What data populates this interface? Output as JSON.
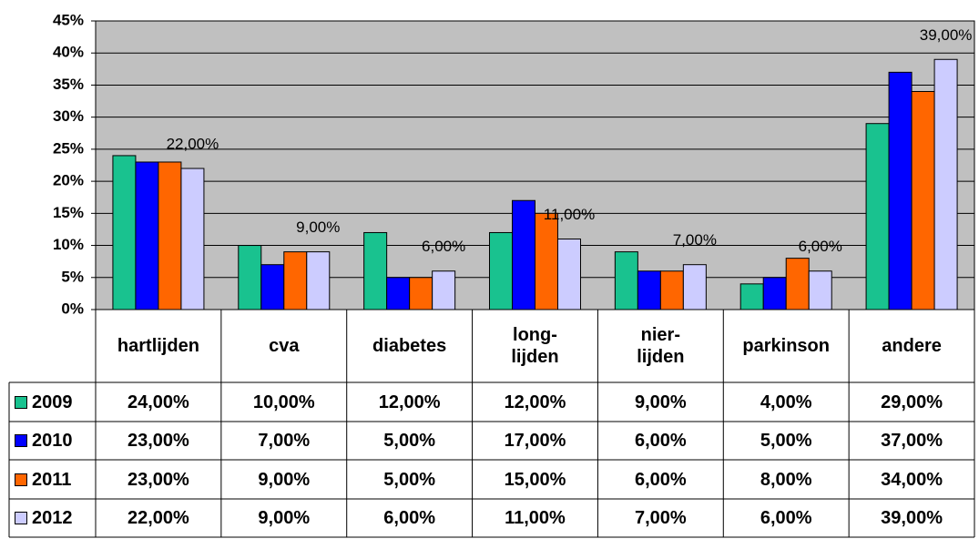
{
  "chart_data": {
    "type": "bar",
    "categories": [
      "hartlijden",
      "cva",
      "diabetes",
      "long-\nlijden",
      "nier-\nlijden",
      "parkinson",
      "andere"
    ],
    "series": [
      {
        "name": "2009",
        "color": "#19c28f",
        "values": [
          24,
          10,
          12,
          12,
          9,
          4,
          29
        ],
        "value_labels": [
          "24,00%",
          "10,00%",
          "12,00%",
          "12,00%",
          "9,00%",
          "4,00%",
          "29,00%"
        ]
      },
      {
        "name": "2010",
        "color": "#0000ff",
        "values": [
          23,
          7,
          5,
          17,
          6,
          5,
          37
        ],
        "value_labels": [
          "23,00%",
          "7,00%",
          "5,00%",
          "17,00%",
          "6,00%",
          "5,00%",
          "37,00%"
        ]
      },
      {
        "name": "2011",
        "color": "#ff6600",
        "values": [
          23,
          9,
          5,
          15,
          6,
          8,
          34
        ],
        "value_labels": [
          "23,00%",
          "9,00%",
          "5,00%",
          "15,00%",
          "6,00%",
          "8,00%",
          "34,00%"
        ]
      },
      {
        "name": "2012",
        "color": "#ccccff",
        "values": [
          22,
          9,
          6,
          11,
          7,
          6,
          39
        ],
        "value_labels": [
          "22,00%",
          "9,00%",
          "6,00%",
          "11,00%",
          "7,00%",
          "6,00%",
          "39,00%"
        ],
        "show_labels": true
      }
    ],
    "ylim": [
      0,
      45
    ],
    "yticks": [
      {
        "value": 0,
        "label": "0%"
      },
      {
        "value": 5,
        "label": "5%"
      },
      {
        "value": 10,
        "label": "10%"
      },
      {
        "value": 15,
        "label": "15%"
      },
      {
        "value": 20,
        "label": "20%"
      },
      {
        "value": 25,
        "label": "25%"
      },
      {
        "value": 30,
        "label": "30%"
      },
      {
        "value": 35,
        "label": "35%"
      },
      {
        "value": 40,
        "label": "40%"
      },
      {
        "value": 45,
        "label": "45%"
      }
    ],
    "grid": true,
    "plot_background": "#c0c0c0"
  }
}
